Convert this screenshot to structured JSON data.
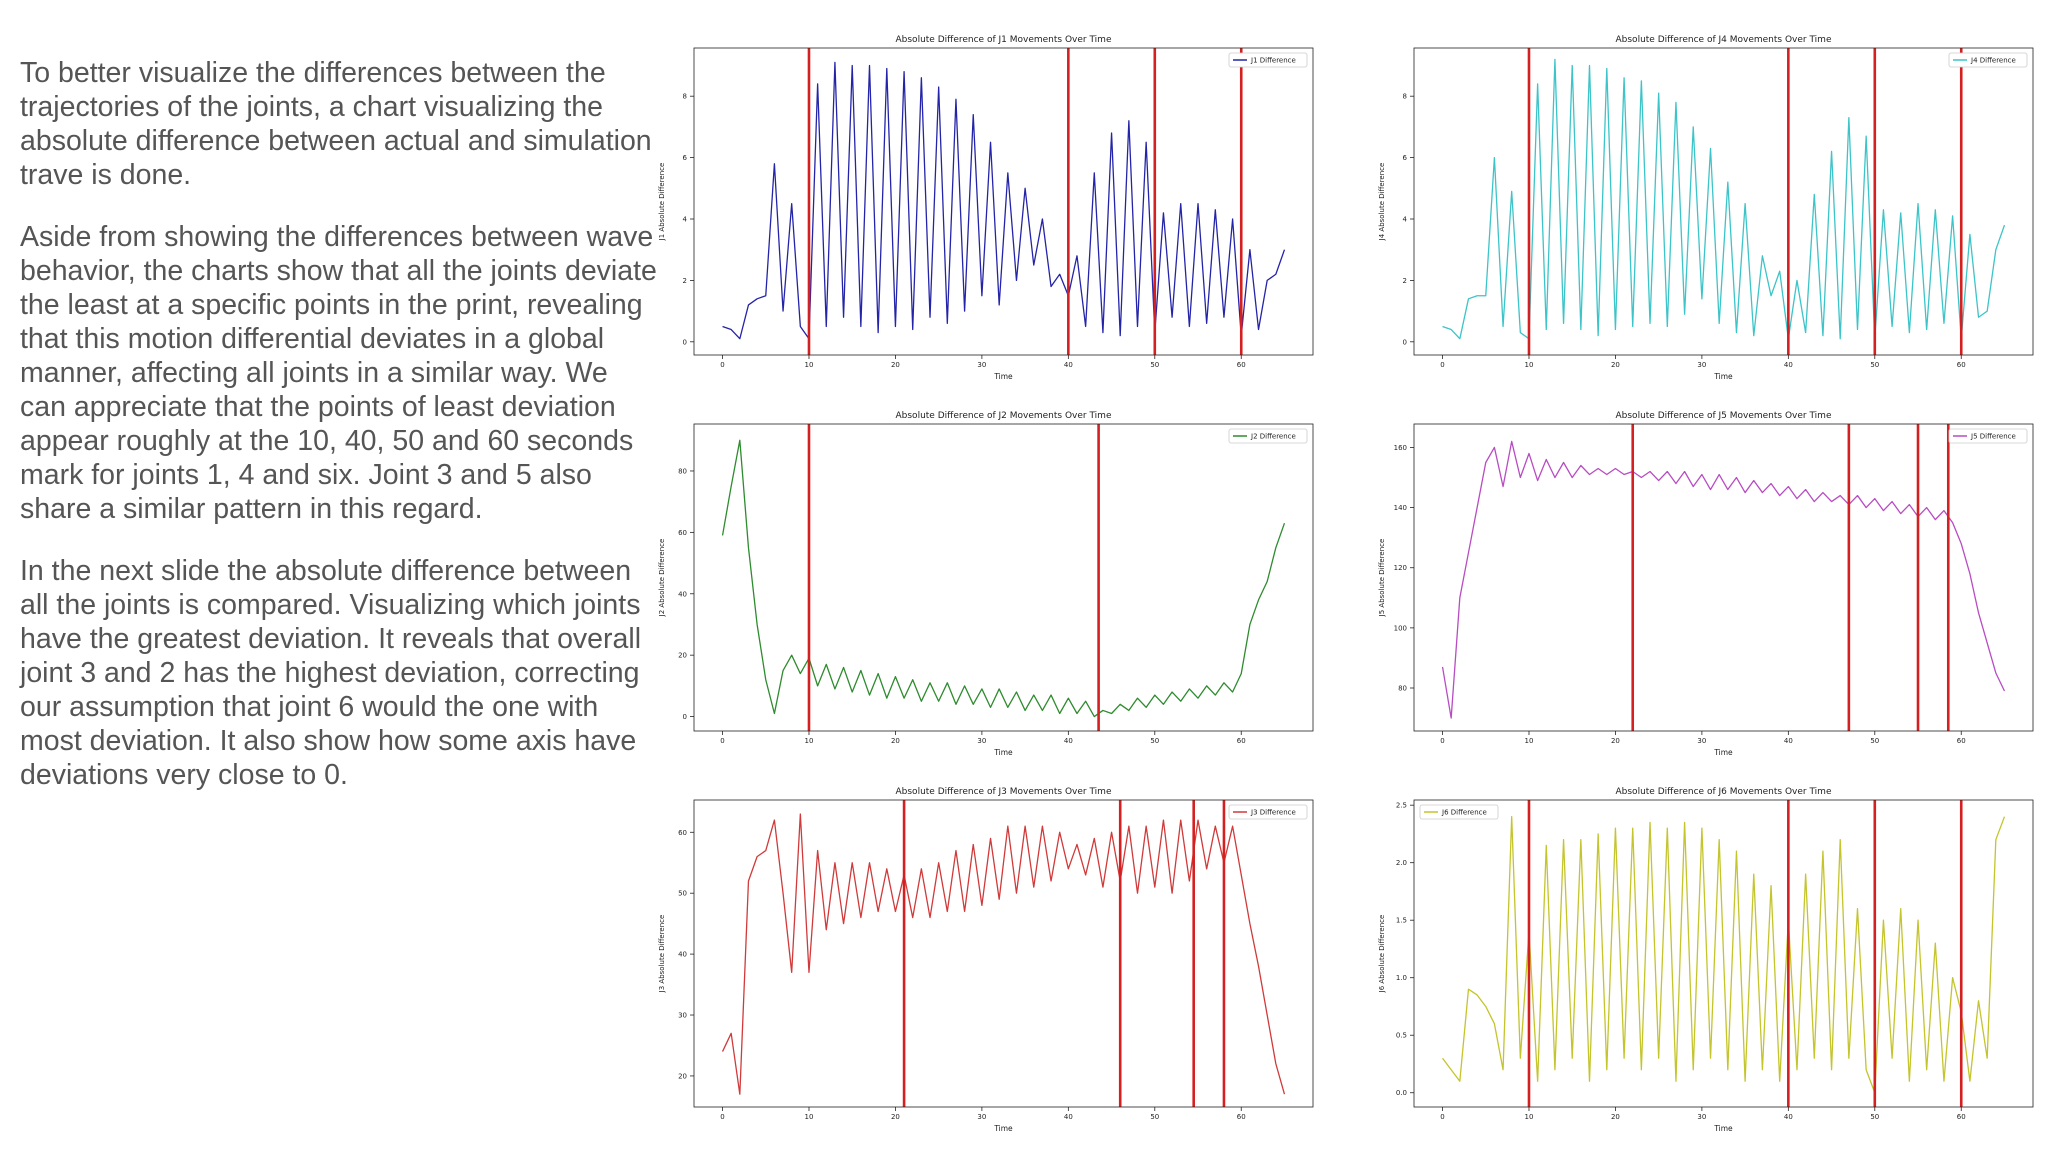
{
  "paragraphs": [
    "To better visualize the differences between the trajectories of the joints, a chart visualizing the absolute difference between actual and simulation trave is done.",
    "Aside from showing the differences between wave behavior, the charts show that all the joints deviate the least at a specific points in the print, revealing that this motion differential deviates in a global manner, affecting all joints in a similar way. We can appreciate that the points of least deviation appear roughly at the 10, 40, 50 and 60 seconds mark for joints 1, 4 and six. Joint 3 and 5 also share a similar pattern in this regard.",
    "In the next slide the absolute difference between all the joints is compared. Visualizing which joints have the greatest deviation. It reveals that overall joint 3 and 2 has the highest deviation, correcting our assumption that joint 6 would the one with most deviation. It also show how some axis have deviations very close to 0."
  ],
  "chart_data": [
    {
      "type": "line",
      "title": "Absolute Difference of J1 Movements Over Time",
      "xlabel": "Time",
      "ylabel": "J1 Absolute Difference",
      "x": [
        0,
        1,
        2,
        3,
        4,
        5,
        6,
        7,
        8,
        9,
        10,
        11,
        12,
        13,
        14,
        15,
        16,
        17,
        18,
        19,
        20,
        21,
        22,
        23,
        24,
        25,
        26,
        27,
        28,
        29,
        30,
        31,
        32,
        33,
        34,
        35,
        36,
        37,
        38,
        39,
        40,
        41,
        42,
        43,
        44,
        45,
        46,
        47,
        48,
        49,
        50,
        51,
        52,
        53,
        54,
        55,
        56,
        57,
        58,
        59,
        60,
        61,
        62,
        63,
        64,
        65
      ],
      "series": [
        {
          "name": "J1 Difference",
          "color": "#2424a8",
          "values": [
            0.5,
            0.4,
            0.1,
            1.2,
            1.4,
            1.5,
            5.8,
            1.0,
            4.5,
            0.5,
            0.1,
            8.4,
            0.5,
            9.1,
            0.8,
            9.0,
            0.5,
            9.0,
            0.3,
            8.9,
            0.5,
            8.8,
            0.4,
            8.6,
            0.8,
            8.3,
            0.6,
            7.9,
            1.0,
            7.4,
            1.5,
            6.5,
            1.2,
            5.5,
            2.0,
            5.0,
            2.5,
            4.0,
            1.8,
            2.2,
            1.5,
            2.8,
            0.5,
            5.5,
            0.3,
            6.8,
            0.2,
            7.2,
            0.5,
            6.5,
            0.3,
            4.2,
            0.8,
            4.5,
            0.5,
            4.5,
            0.6,
            4.3,
            0.8,
            4.0,
            0.2,
            3.0,
            0.4,
            2.0,
            2.2,
            3.0
          ]
        }
      ],
      "vlines": [
        10,
        40,
        50,
        60
      ],
      "vline_color": "#d42020",
      "xlim": [
        -3.3,
        68.3
      ],
      "xticks": [
        0,
        10,
        20,
        30,
        40,
        50,
        60
      ],
      "ylim": [
        -0.43,
        9.57
      ],
      "yticks": [
        0,
        2,
        4,
        6,
        8
      ],
      "legend": "upper right"
    },
    {
      "type": "line",
      "title": "Absolute Difference of J4 Movements Over Time",
      "xlabel": "Time",
      "ylabel": "J4 Absolute Difference",
      "x": [
        0,
        1,
        2,
        3,
        4,
        5,
        6,
        7,
        8,
        9,
        10,
        11,
        12,
        13,
        14,
        15,
        16,
        17,
        18,
        19,
        20,
        21,
        22,
        23,
        24,
        25,
        26,
        27,
        28,
        29,
        30,
        31,
        32,
        33,
        34,
        35,
        36,
        37,
        38,
        39,
        40,
        41,
        42,
        43,
        44,
        45,
        46,
        47,
        48,
        49,
        50,
        51,
        52,
        53,
        54,
        55,
        56,
        57,
        58,
        59,
        60,
        61,
        62,
        63,
        64,
        65
      ],
      "series": [
        {
          "name": "J4 Difference",
          "color": "#3cc4c8",
          "values": [
            0.5,
            0.4,
            0.1,
            1.4,
            1.5,
            1.5,
            6.0,
            0.5,
            4.9,
            0.3,
            0.1,
            8.4,
            0.4,
            9.2,
            0.6,
            9.0,
            0.4,
            9.0,
            0.2,
            8.9,
            0.4,
            8.6,
            0.5,
            8.5,
            0.6,
            8.1,
            0.5,
            7.8,
            0.9,
            7.0,
            1.4,
            6.3,
            0.6,
            5.2,
            0.3,
            4.5,
            0.2,
            2.8,
            1.5,
            2.3,
            0.1,
            2.0,
            0.3,
            4.8,
            0.2,
            6.2,
            0.1,
            7.3,
            0.4,
            6.7,
            0.1,
            4.3,
            0.5,
            4.2,
            0.3,
            4.5,
            0.4,
            4.3,
            0.6,
            4.1,
            0.1,
            3.5,
            0.8,
            1.0,
            3.0,
            3.8
          ]
        }
      ],
      "vlines": [
        10,
        40,
        50,
        60
      ],
      "vline_color": "#d42020",
      "xlim": [
        -3.3,
        68.3
      ],
      "xticks": [
        0,
        10,
        20,
        30,
        40,
        50,
        60
      ],
      "ylim": [
        -0.43,
        9.57
      ],
      "yticks": [
        0,
        2,
        4,
        6,
        8
      ],
      "legend": "upper right"
    },
    {
      "type": "line",
      "title": "Absolute Difference of J2 Movements Over Time",
      "xlabel": "Time",
      "ylabel": "J2 Absolute Difference",
      "x": [
        0,
        1,
        2,
        3,
        4,
        5,
        6,
        7,
        8,
        9,
        10,
        11,
        12,
        13,
        14,
        15,
        16,
        17,
        18,
        19,
        20,
        21,
        22,
        23,
        24,
        25,
        26,
        27,
        28,
        29,
        30,
        31,
        32,
        33,
        34,
        35,
        36,
        37,
        38,
        39,
        40,
        41,
        42,
        43,
        44,
        45,
        46,
        47,
        48,
        49,
        50,
        51,
        52,
        53,
        54,
        55,
        56,
        57,
        58,
        59,
        60,
        61,
        62,
        63,
        64,
        65
      ],
      "series": [
        {
          "name": "J2 Difference",
          "color": "#2e8b2e",
          "values": [
            59,
            75,
            90,
            55,
            30,
            12,
            1,
            15,
            20,
            14,
            19,
            10,
            17,
            9,
            16,
            8,
            15,
            7,
            14,
            6,
            13,
            6,
            12,
            5,
            11,
            5,
            11,
            4,
            10,
            4,
            9,
            3,
            9,
            3,
            8,
            2,
            7,
            2,
            7,
            1,
            6,
            1,
            5,
            0,
            2,
            1,
            4,
            2,
            6,
            3,
            7,
            4,
            8,
            5,
            9,
            6,
            10,
            7,
            11,
            8,
            14,
            30,
            38,
            44,
            55,
            63
          ]
        }
      ],
      "vlines": [
        10,
        43.5
      ],
      "vline_color": "#d42020",
      "xlim": [
        -3.3,
        68.3
      ],
      "xticks": [
        0,
        10,
        20,
        30,
        40,
        50,
        60
      ],
      "ylim": [
        -4.7,
        95.3
      ],
      "yticks": [
        0,
        20,
        40,
        60,
        80
      ],
      "legend": "upper right"
    },
    {
      "type": "line",
      "title": "Absolute Difference of J5 Movements Over Time",
      "xlabel": "Time",
      "ylabel": "J5 Absolute Difference",
      "x": [
        0,
        1,
        2,
        3,
        4,
        5,
        6,
        7,
        8,
        9,
        10,
        11,
        12,
        13,
        14,
        15,
        16,
        17,
        18,
        19,
        20,
        21,
        22,
        23,
        24,
        25,
        26,
        27,
        28,
        29,
        30,
        31,
        32,
        33,
        34,
        35,
        36,
        37,
        38,
        39,
        40,
        41,
        42,
        43,
        44,
        45,
        46,
        47,
        48,
        49,
        50,
        51,
        52,
        53,
        54,
        55,
        56,
        57,
        58,
        59,
        60,
        61,
        62,
        63,
        64,
        65
      ],
      "series": [
        {
          "name": "J5 Difference",
          "color": "#b84cc2",
          "values": [
            87,
            70,
            110,
            125,
            140,
            155,
            160,
            147,
            162,
            150,
            158,
            149,
            156,
            150,
            155,
            150,
            154,
            151,
            153,
            151,
            153,
            151,
            152,
            150,
            152,
            149,
            152,
            148,
            152,
            147,
            151,
            146,
            151,
            146,
            150,
            145,
            149,
            145,
            148,
            144,
            147,
            143,
            146,
            142,
            145,
            142,
            144,
            141,
            144,
            140,
            143,
            139,
            142,
            138,
            141,
            137,
            140,
            136,
            139,
            135,
            128,
            118,
            105,
            95,
            85,
            79
          ]
        }
      ],
      "vlines": [
        22,
        47,
        55,
        58.5
      ],
      "vline_color": "#d42020",
      "xlim": [
        -3.3,
        68.3
      ],
      "xticks": [
        0,
        10,
        20,
        30,
        40,
        50,
        60
      ],
      "ylim": [
        65.7,
        167.8
      ],
      "yticks": [
        80,
        100,
        120,
        140,
        160
      ],
      "legend": "upper right"
    },
    {
      "type": "line",
      "title": "Absolute Difference of J3 Movements Over Time",
      "xlabel": "Time",
      "ylabel": "J3 Absolute Difference",
      "x": [
        0,
        1,
        2,
        3,
        4,
        5,
        6,
        7,
        8,
        9,
        10,
        11,
        12,
        13,
        14,
        15,
        16,
        17,
        18,
        19,
        20,
        21,
        22,
        23,
        24,
        25,
        26,
        27,
        28,
        29,
        30,
        31,
        32,
        33,
        34,
        35,
        36,
        37,
        38,
        39,
        40,
        41,
        42,
        43,
        44,
        45,
        46,
        47,
        48,
        49,
        50,
        51,
        52,
        53,
        54,
        55,
        56,
        57,
        58,
        59,
        60,
        61,
        62,
        63,
        64,
        65
      ],
      "series": [
        {
          "name": "J3 Difference",
          "color": "#d03a3a",
          "values": [
            24,
            27,
            17,
            52,
            56,
            57,
            62,
            50,
            37,
            63,
            37,
            57,
            44,
            55,
            45,
            55,
            46,
            55,
            47,
            54,
            47,
            53,
            46,
            54,
            46,
            55,
            47,
            57,
            47,
            58,
            48,
            59,
            49,
            61,
            50,
            61,
            51,
            61,
            52,
            60,
            54,
            58,
            53,
            59,
            51,
            60,
            52,
            61,
            50,
            61,
            51,
            62,
            50,
            62,
            52,
            62,
            54,
            61,
            55,
            61,
            53,
            45,
            38,
            30,
            22,
            17
          ]
        }
      ],
      "vlines": [
        21,
        46,
        54.5,
        58
      ],
      "vline_color": "#d42020",
      "xlim": [
        -3.3,
        68.3
      ],
      "xticks": [
        0,
        10,
        20,
        30,
        40,
        50,
        60
      ],
      "ylim": [
        14.9,
        65.3
      ],
      "yticks": [
        20,
        30,
        40,
        50,
        60
      ],
      "legend": "upper right"
    },
    {
      "type": "line",
      "title": "Absolute Difference of J6 Movements Over Time",
      "xlabel": "Time",
      "ylabel": "J6 Absolute Difference",
      "x": [
        0,
        1,
        2,
        3,
        4,
        5,
        6,
        7,
        8,
        9,
        10,
        11,
        12,
        13,
        14,
        15,
        16,
        17,
        18,
        19,
        20,
        21,
        22,
        23,
        24,
        25,
        26,
        27,
        28,
        29,
        30,
        31,
        32,
        33,
        34,
        35,
        36,
        37,
        38,
        39,
        40,
        41,
        42,
        43,
        44,
        45,
        46,
        47,
        48,
        49,
        50,
        51,
        52,
        53,
        54,
        55,
        56,
        57,
        58,
        59,
        60,
        61,
        62,
        63,
        64,
        65
      ],
      "series": [
        {
          "name": "J6 Difference",
          "color": "#c4c42c",
          "values": [
            0.3,
            0.2,
            0.1,
            0.9,
            0.85,
            0.75,
            0.6,
            0.2,
            2.4,
            0.3,
            1.4,
            0.1,
            2.15,
            0.2,
            2.2,
            0.3,
            2.2,
            0.1,
            2.25,
            0.2,
            2.3,
            0.3,
            2.3,
            0.2,
            2.35,
            0.3,
            2.3,
            0.1,
            2.35,
            0.2,
            2.3,
            0.3,
            2.2,
            0.2,
            2.1,
            0.1,
            1.9,
            0.2,
            1.8,
            0.1,
            1.5,
            0.2,
            1.9,
            0.3,
            2.1,
            0.2,
            2.2,
            0.3,
            1.6,
            0.2,
            0.0,
            1.5,
            0.3,
            1.6,
            0.1,
            1.5,
            0.2,
            1.3,
            0.1,
            1.0,
            0.7,
            0.1,
            0.8,
            0.3,
            2.2,
            2.4
          ]
        }
      ],
      "vlines": [
        10,
        40,
        50,
        60
      ],
      "vline_color": "#d42020",
      "xlim": [
        -3.3,
        68.3
      ],
      "xticks": [
        0,
        10,
        20,
        30,
        40,
        50,
        60
      ],
      "ylim": [
        -0.124,
        2.545
      ],
      "yticks": [
        {
          "value": 0,
          "label": "0.0"
        },
        {
          "value": 0.5,
          "label": "0.5"
        },
        {
          "value": 1,
          "label": "1.0"
        },
        {
          "value": 1.5,
          "label": "1.5"
        },
        {
          "value": 2,
          "label": "2.0"
        },
        {
          "value": 2.5,
          "label": "2.5"
        }
      ],
      "legend": "upper left"
    }
  ]
}
